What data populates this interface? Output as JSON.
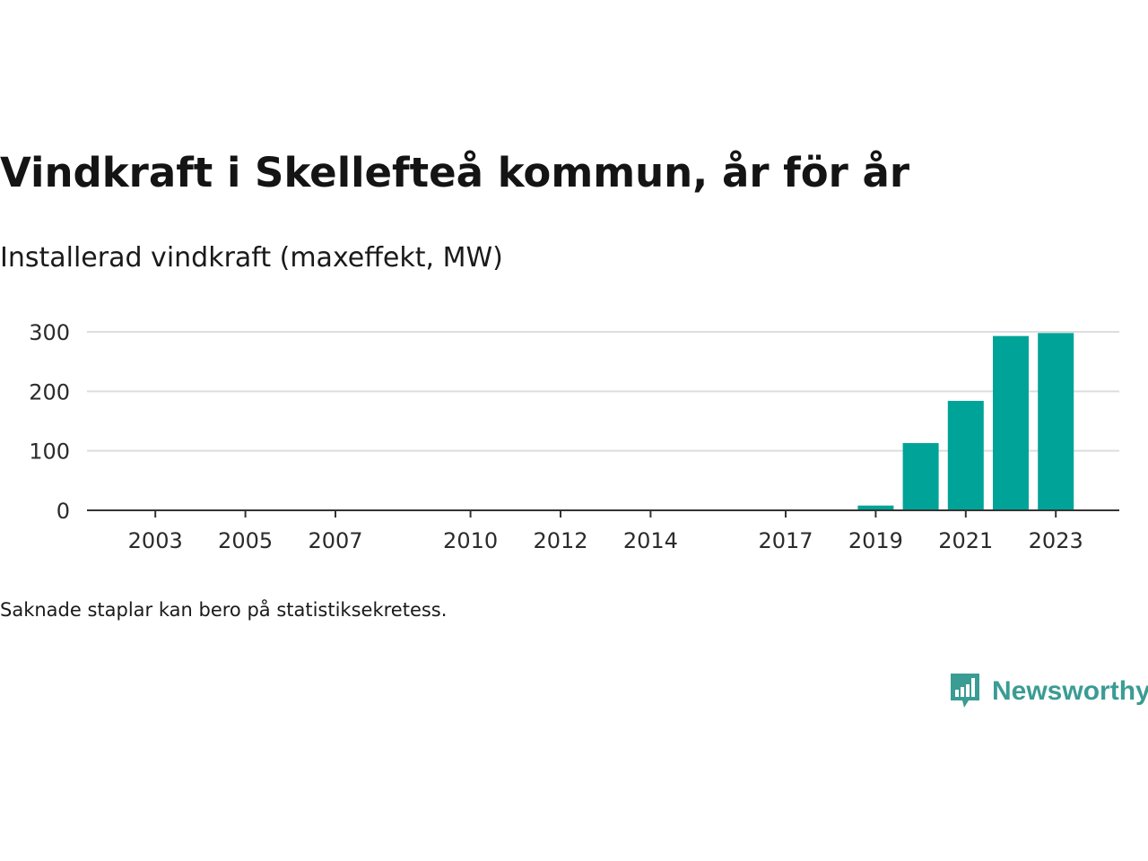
{
  "title": "Vindkraft i Skellefteå kommun, år för år",
  "subtitle": "Installerad vindkraft (maxeffekt, MW)",
  "note": "Saknade staplar kan bero på statistiksekretess.",
  "brand": {
    "name": "Newsworthy",
    "logo_icon": "bar-chart-speech-bubble-icon",
    "color": "#3a9c93"
  },
  "chart_data": {
    "type": "bar",
    "title": "",
    "xlabel": "",
    "ylabel": "",
    "categories": [
      2002,
      2003,
      2004,
      2005,
      2006,
      2007,
      2008,
      2009,
      2010,
      2011,
      2012,
      2013,
      2014,
      2015,
      2016,
      2017,
      2018,
      2019,
      2020,
      2021,
      2022,
      2023
    ],
    "values": [
      0,
      0,
      0,
      0,
      0,
      0,
      0,
      0,
      0,
      0,
      0,
      0,
      0,
      0,
      0,
      0,
      0,
      8,
      113,
      184,
      293,
      298
    ],
    "x_tick_labels": [
      "2003",
      "2005",
      "2007",
      "2010",
      "2012",
      "2014",
      "2017",
      "2019",
      "2021",
      "2023"
    ],
    "y_ticks": [
      0,
      100,
      200,
      300
    ],
    "ylim": [
      0,
      300
    ],
    "grid": true,
    "bar_color": "#00a398",
    "grid_color": "#dddddd",
    "axis_color": "#333333"
  }
}
